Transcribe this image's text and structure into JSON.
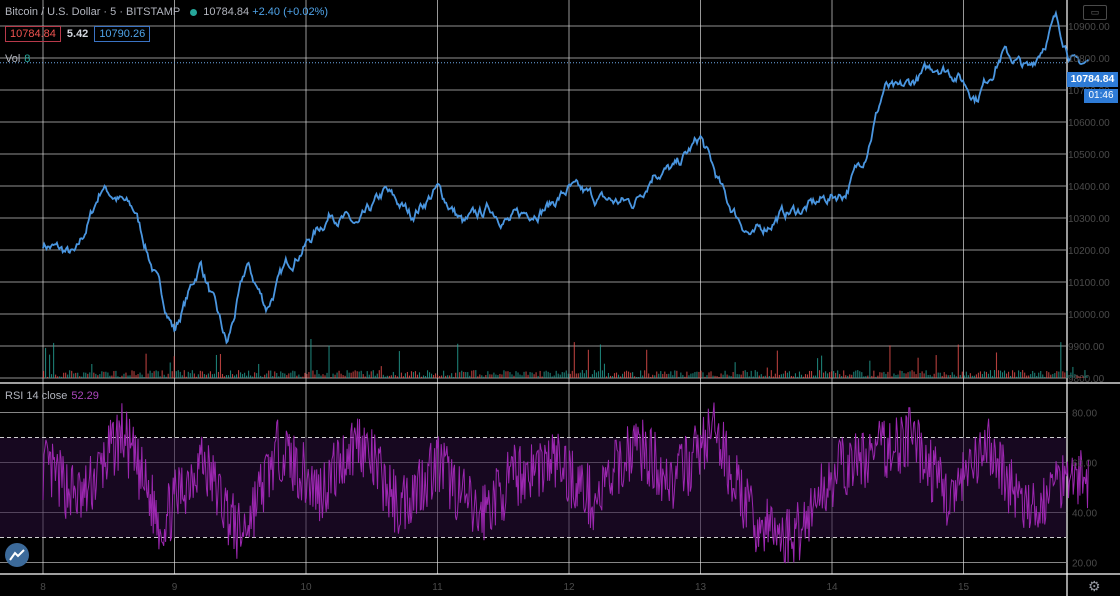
{
  "header": {
    "symbol": "Bitcoin / U.S. Dollar · 5 · BITSTAMP",
    "last": "10784.84",
    "change": "+2.40 (+0.02%)",
    "bid": "10784.84",
    "spread": "5.42",
    "ask": "10790.26"
  },
  "price_tag": "10784.84",
  "countdown": "01:46",
  "vol_label": "Vol",
  "vol_value": "8",
  "rsi_label": "RSI 14 close",
  "rsi_value": "52.29",
  "colors": {
    "price_line": "#4a96e0",
    "rsi_line": "#9c27b0",
    "vol_up": "#26a69a",
    "vol_down": "#ef5350",
    "grid": "#e0e0e0"
  },
  "icons": {
    "logo": "tradingview-logo-icon",
    "settings": "gear-icon"
  },
  "chart_data": {
    "type": "line",
    "x_ticks": [
      "8",
      "9",
      "10",
      "11",
      "12",
      "13",
      "14",
      "15"
    ],
    "price_axis": {
      "ticks": [
        "10900.00",
        "10800.00",
        "10700.00",
        "10600.00",
        "10500.00",
        "10400.00",
        "10300.00",
        "10200.00",
        "10100.00",
        "10000.00",
        "9900.00",
        "9800.00"
      ],
      "ylim": [
        9800,
        10950
      ]
    },
    "rsi_axis": {
      "ticks": [
        "80.00",
        "60.00",
        "40.00",
        "20.00"
      ],
      "ylim": [
        17,
        87
      ],
      "band": [
        30,
        70
      ]
    },
    "price_series": {
      "x": [
        0,
        0.25,
        0.45,
        0.7,
        0.9,
        1.0,
        1.2,
        1.4,
        1.55,
        1.7,
        1.85,
        2.0,
        2.2,
        2.4,
        2.6,
        2.8,
        3.0,
        3.2,
        3.4,
        3.55,
        3.7,
        3.85,
        4.0,
        4.2,
        4.35,
        4.5,
        4.65,
        4.8,
        5.0,
        5.2,
        5.4,
        5.6,
        5.8,
        5.95,
        6.1,
        6.25,
        6.4,
        6.5,
        6.6,
        6.8,
        6.95,
        7.1,
        7.3,
        7.5,
        7.7,
        7.85,
        7.95
      ],
      "y": [
        10220,
        10180,
        10400,
        10320,
        10060,
        9950,
        10160,
        9900,
        10150,
        10020,
        10150,
        10220,
        10320,
        10270,
        10380,
        10310,
        10390,
        10280,
        10330,
        10290,
        10320,
        10340,
        10390,
        10360,
        10350,
        10350,
        10450,
        10450,
        10550,
        10350,
        10240,
        10310,
        10330,
        10360,
        10380,
        10500,
        10710,
        10690,
        10720,
        10780,
        10750,
        10680,
        10820,
        10760,
        10920,
        10780,
        10785
      ]
    },
    "rsi_series": {
      "x": [
        0,
        0.3,
        0.6,
        0.9,
        1.2,
        1.5,
        1.8,
        2.1,
        2.4,
        2.7,
        3.0,
        3.3,
        3.6,
        3.9,
        4.2,
        4.5,
        4.8,
        5.1,
        5.4,
        5.7,
        6.0,
        6.3,
        6.6,
        6.9,
        7.2,
        7.5,
        7.8,
        7.95
      ],
      "y": [
        58,
        45,
        72,
        35,
        62,
        30,
        66,
        48,
        70,
        42,
        60,
        38,
        55,
        61,
        44,
        68,
        52,
        73,
        36,
        29,
        55,
        63,
        70,
        45,
        66,
        38,
        58,
        52
      ]
    }
  }
}
